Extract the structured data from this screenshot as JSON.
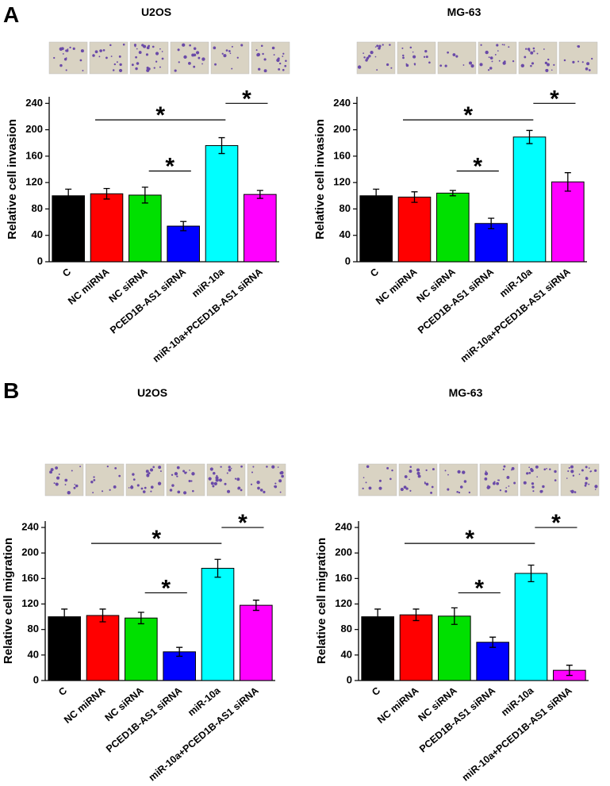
{
  "panel_labels": [
    "A",
    "B"
  ],
  "chart_data": [
    {
      "type": "bar",
      "title": "U2OS",
      "ylabel": "Relative cell invasion",
      "categories": [
        "C",
        "NC miRNA",
        "NC siRNA",
        "PCED1B-AS1 siRNA",
        "miR-10a",
        "miR-10a+PCED1B-AS1 siRNA"
      ],
      "values": [
        100,
        103,
        101,
        54,
        176,
        102
      ],
      "errors": [
        10,
        8,
        12,
        7,
        12,
        6
      ],
      "colors": [
        "#000000",
        "#ff0000",
        "#00e000",
        "#0000ff",
        "#00ffff",
        "#ff00ff"
      ],
      "ylim": [
        0,
        250
      ],
      "yticks": [
        0,
        40,
        80,
        120,
        160,
        200,
        240
      ],
      "annotations": [
        "*",
        "*",
        "*"
      ]
    },
    {
      "type": "bar",
      "title": "MG-63",
      "ylabel": "Relative cell invasion",
      "categories": [
        "C",
        "NC miRNA",
        "NC siRNA",
        "PCED1B-AS1 siRNA",
        "miR-10a",
        "miR-10a+PCED1B-AS1 siRNA"
      ],
      "values": [
        100,
        98,
        104,
        58,
        189,
        121
      ],
      "errors": [
        10,
        8,
        4,
        8,
        10,
        14
      ],
      "colors": [
        "#000000",
        "#ff0000",
        "#00e000",
        "#0000ff",
        "#00ffff",
        "#ff00ff"
      ],
      "ylim": [
        0,
        250
      ],
      "yticks": [
        0,
        40,
        80,
        120,
        160,
        200,
        240
      ],
      "annotations": [
        "*",
        "*",
        "*"
      ]
    },
    {
      "type": "bar",
      "title": "U2OS",
      "ylabel": "Relative cell migration",
      "categories": [
        "C",
        "NC miRNA",
        "NC siRNA",
        "PCED1B-AS1 siRNA",
        "miR-10a",
        "miR-10a+PCED1B-AS1 siRNA"
      ],
      "values": [
        100,
        102,
        98,
        45,
        176,
        118
      ],
      "errors": [
        12,
        10,
        9,
        7,
        14,
        8
      ],
      "colors": [
        "#000000",
        "#ff0000",
        "#00e000",
        "#0000ff",
        "#00ffff",
        "#ff00ff"
      ],
      "ylim": [
        0,
        250
      ],
      "yticks": [
        0,
        40,
        80,
        120,
        160,
        200,
        240
      ],
      "annotations": [
        "*",
        "*",
        "*"
      ]
    },
    {
      "type": "bar",
      "title": "MG-63",
      "ylabel": "Relative cell migration",
      "categories": [
        "C",
        "NC miRNA",
        "NC siRNA",
        "PCED1B-AS1 siRNA",
        "miR-10a",
        "miR-10a+PCED1B-AS1 siRNA"
      ],
      "values": [
        100,
        103,
        101,
        60,
        168,
        16
      ],
      "errors": [
        12,
        9,
        13,
        8,
        13,
        8
      ],
      "colors": [
        "#000000",
        "#ff0000",
        "#00e000",
        "#0000ff",
        "#00ffff",
        "#ff00ff"
      ],
      "ylim": [
        0,
        250
      ],
      "yticks": [
        0,
        40,
        80,
        120,
        160,
        200,
        240
      ],
      "annotations": [
        "*",
        "*",
        "*"
      ]
    }
  ]
}
